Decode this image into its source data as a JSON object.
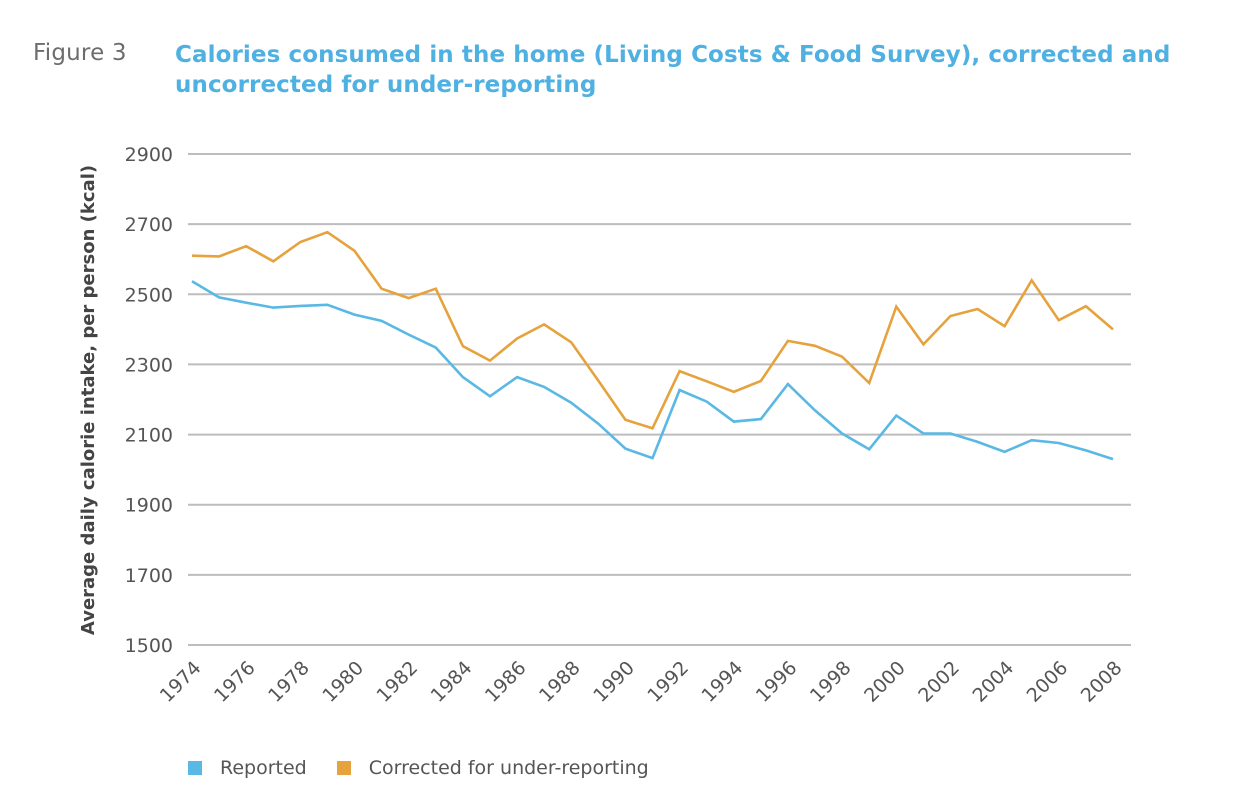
{
  "figure": {
    "label": "Figure 3",
    "title": "Calories consumed in the home (Living Costs & Food Survey), corrected and uncorrected for under-reporting",
    "title_line1": "Calories consumed in the home (Living Costs & Food Survey), corrected and",
    "title_line2": "uncorrected for under-reporting"
  },
  "colors": {
    "reported": "#5ab8e4",
    "corrected": "#e6a23c",
    "grid": "#bdbdbd",
    "title": "#4fb0e2"
  },
  "chart_data": {
    "type": "line",
    "title": "Calories consumed in the home (Living Costs & Food Survey), corrected and uncorrected for under-reporting",
    "xlabel": "",
    "ylabel": "Average daily calorie intake, per person (kcal)",
    "ylim": [
      1500,
      2900
    ],
    "yticks": [
      1500,
      1700,
      1900,
      2100,
      2300,
      2500,
      2700,
      2900
    ],
    "xlim": [
      1974,
      2008
    ],
    "xticks": [
      1974,
      1976,
      1978,
      1980,
      1982,
      1984,
      1986,
      1988,
      1990,
      1992,
      1994,
      1996,
      1998,
      2000,
      2002,
      2004,
      2006,
      2008
    ],
    "grid": true,
    "legend_position": "bottom-left",
    "x": [
      1974,
      1975,
      1976,
      1977,
      1978,
      1979,
      1980,
      1981,
      1982,
      1983,
      1984,
      1985,
      1986,
      1987,
      1988,
      1989,
      1990,
      1991,
      1992,
      1993,
      1994,
      1995,
      1996,
      1997,
      1998,
      1999,
      2000,
      2001,
      2002,
      2003,
      2004,
      2005,
      2006,
      2007,
      2008
    ],
    "series": [
      {
        "name": "Reported",
        "color_key": "reported",
        "values": [
          2537,
          2491,
          2476,
          2462,
          2467,
          2470,
          2442,
          2424,
          2385,
          2348,
          2264,
          2209,
          2264,
          2236,
          2191,
          2131,
          2060,
          2033,
          2227,
          2194,
          2137,
          2144,
          2244,
          2169,
          2103,
          2058,
          2154,
          2103,
          2103,
          2079,
          2051,
          2084,
          2076,
          2055,
          2030
        ]
      },
      {
        "name": "Corrected for under-reporting",
        "color_key": "corrected",
        "values": [
          2610,
          2608,
          2637,
          2594,
          2649,
          2677,
          2624,
          2516,
          2489,
          2516,
          2352,
          2311,
          2374,
          2414,
          2363,
          2254,
          2142,
          2118,
          2281,
          2252,
          2222,
          2253,
          2367,
          2353,
          2322,
          2247,
          2465,
          2357,
          2438,
          2458,
          2409,
          2540,
          2426,
          2466,
          2400
        ]
      }
    ]
  },
  "legend": [
    {
      "label": "Reported",
      "color_key": "reported"
    },
    {
      "label": "Corrected for under-reporting",
      "color_key": "corrected"
    }
  ]
}
